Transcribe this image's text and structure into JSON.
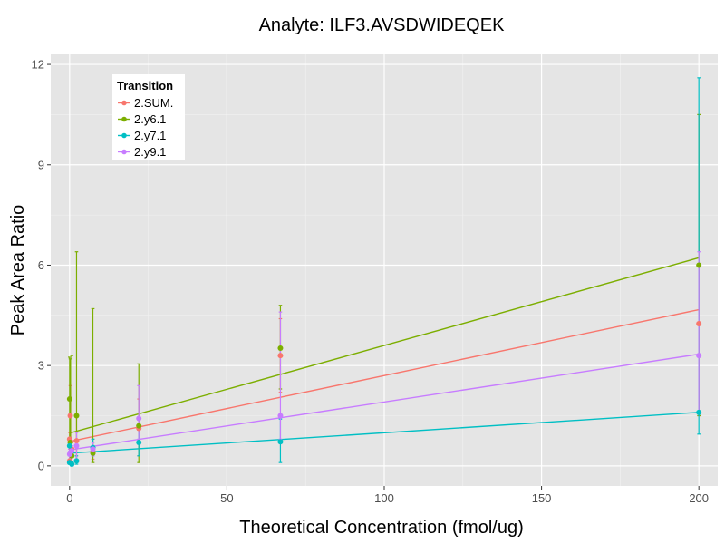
{
  "chart_data": {
    "type": "scatter",
    "title": "Analyte: ILF3.AVSDWIDEQEK",
    "xlabel": "Theoretical Concentration (fmol/ug)",
    "ylabel": "Peak Area Ratio",
    "xlim": [
      -6,
      206
    ],
    "ylim": [
      -0.6,
      12.3
    ],
    "xticks": [
      0,
      50,
      100,
      150,
      200
    ],
    "yticks": [
      0,
      3,
      6,
      9,
      12
    ],
    "grid": true,
    "legend": {
      "title": "Transition",
      "placement": "top-left"
    },
    "series": [
      {
        "name": "2.SUM.",
        "color": "#F8766D",
        "fit": {
          "intercept": 0.73,
          "slope": 0.0197
        },
        "points": [
          {
            "x": 0,
            "y": 0.15,
            "lo": 0.1,
            "hi": 0.2
          },
          {
            "x": 0,
            "y": 0.8,
            "lo": 0.6,
            "hi": 1.0
          },
          {
            "x": 0.2,
            "y": 1.5,
            "lo": 0.3,
            "hi": 2.4
          },
          {
            "x": 0.7,
            "y": 0.5,
            "lo": 0.3,
            "hi": 0.7
          },
          {
            "x": 2.2,
            "y": 0.75,
            "lo": 0.2,
            "hi": 1.5
          },
          {
            "x": 7.4,
            "y": 0.42,
            "lo": 0.2,
            "hi": 0.8
          },
          {
            "x": 22,
            "y": 1.12,
            "lo": 0.3,
            "hi": 2.0
          },
          {
            "x": 67,
            "y": 3.3,
            "lo": 2.2,
            "hi": 4.4
          },
          {
            "x": 200,
            "y": 4.25,
            "lo": 1.5,
            "hi": 10.5
          }
        ]
      },
      {
        "name": "2.y6.1",
        "color": "#7CAE00",
        "fit": {
          "intercept": 0.98,
          "slope": 0.0262
        },
        "points": [
          {
            "x": 0,
            "y": 2.0,
            "lo": 0.1,
            "hi": 3.25
          },
          {
            "x": 0.2,
            "y": 0.7,
            "lo": 0.2,
            "hi": 3.2
          },
          {
            "x": 0.7,
            "y": 0.3,
            "lo": 0.1,
            "hi": 3.3
          },
          {
            "x": 2.2,
            "y": 1.5,
            "lo": 0.1,
            "hi": 6.4
          },
          {
            "x": 7.4,
            "y": 0.38,
            "lo": 0.1,
            "hi": 4.7
          },
          {
            "x": 22,
            "y": 1.2,
            "lo": 0.1,
            "hi": 3.05
          },
          {
            "x": 67,
            "y": 3.52,
            "lo": 2.3,
            "hi": 4.8
          },
          {
            "x": 200,
            "y": 6.0,
            "lo": 1.5,
            "hi": 10.5
          }
        ]
      },
      {
        "name": "2.y7.1",
        "color": "#00BFC4",
        "fit": {
          "intercept": 0.38,
          "slope": 0.0061
        },
        "points": [
          {
            "x": 0,
            "y": 0.1,
            "lo": 0.05,
            "hi": 0.2
          },
          {
            "x": 0,
            "y": 0.6,
            "lo": 0.4,
            "hi": 0.8
          },
          {
            "x": 0.7,
            "y": 0.05,
            "lo": 0.0,
            "hi": 0.12
          },
          {
            "x": 2.2,
            "y": 0.15,
            "lo": 0.05,
            "hi": 0.3
          },
          {
            "x": 7.4,
            "y": 0.55,
            "lo": 0.3,
            "hi": 0.8
          },
          {
            "x": 22,
            "y": 0.7,
            "lo": 0.3,
            "hi": 1.1
          },
          {
            "x": 67,
            "y": 0.72,
            "lo": 0.1,
            "hi": 1.4
          },
          {
            "x": 200,
            "y": 1.6,
            "lo": 0.95,
            "hi": 11.6
          }
        ]
      },
      {
        "name": "2.y9.1",
        "color": "#C77CFF",
        "fit": {
          "intercept": 0.48,
          "slope": 0.0143
        },
        "points": [
          {
            "x": 0,
            "y": 0.35,
            "lo": 0.2,
            "hi": 0.5
          },
          {
            "x": 0.2,
            "y": 0.4,
            "lo": 0.2,
            "hi": 0.6
          },
          {
            "x": 0.7,
            "y": 0.45,
            "lo": 0.3,
            "hi": 0.6
          },
          {
            "x": 2.2,
            "y": 0.6,
            "lo": 0.2,
            "hi": 1.0
          },
          {
            "x": 7.4,
            "y": 0.5,
            "lo": 0.3,
            "hi": 0.7
          },
          {
            "x": 22,
            "y": 1.42,
            "lo": 0.8,
            "hi": 2.4
          },
          {
            "x": 67,
            "y": 1.5,
            "lo": 0.8,
            "hi": 4.6
          },
          {
            "x": 200,
            "y": 3.3,
            "lo": 1.6,
            "hi": 6.4
          }
        ]
      }
    ]
  }
}
